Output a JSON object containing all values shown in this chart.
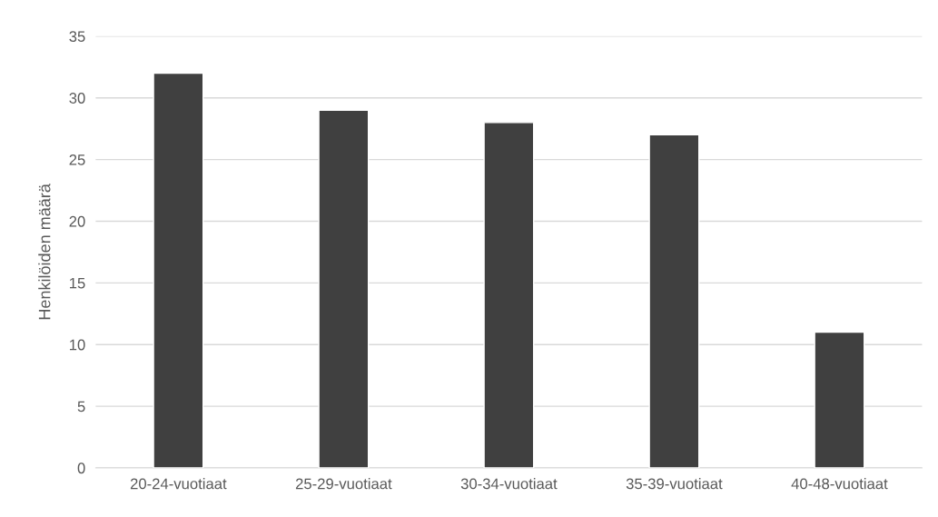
{
  "chart_data": {
    "type": "bar",
    "ylabel": "Henkilöiden määrä",
    "categories": [
      "20-24-vuotiaat",
      "25-29-vuotiaat",
      "30-34-vuotiaat",
      "35-39-vuotiaat",
      "40-48-vuotiaat"
    ],
    "values": [
      32,
      29,
      28,
      27,
      11
    ],
    "color": "#404040",
    "ylim": [
      0,
      35
    ],
    "yticks": [
      0,
      5,
      10,
      15,
      20,
      25,
      30,
      35
    ],
    "grid": "y"
  }
}
